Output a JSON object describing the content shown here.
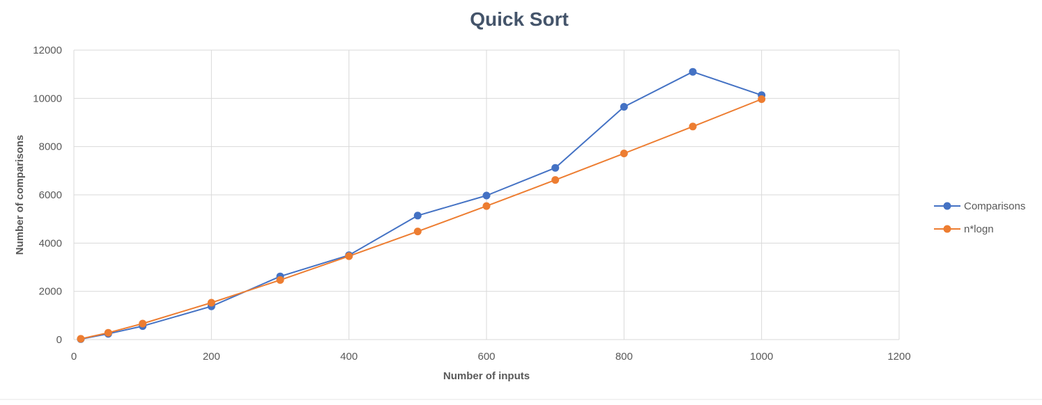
{
  "colors": {
    "comparisons": "#4472C4",
    "nlogn": "#ED7D31",
    "grid": "#D9D9D9",
    "text": "#595959",
    "title": "#44546A"
  },
  "chart_data": {
    "type": "line",
    "title": "Quick Sort",
    "xlabel": "Number of inputs",
    "ylabel": "Number of comparisons",
    "xlim": [
      0,
      1200
    ],
    "ylim": [
      0,
      12000
    ],
    "x_ticks": [
      "0",
      "200",
      "400",
      "600",
      "800",
      "1000",
      "1200"
    ],
    "y_ticks": [
      "0",
      "2000",
      "4000",
      "6000",
      "8000",
      "10000",
      "12000"
    ],
    "grid": true,
    "legend_position": "right",
    "series": [
      {
        "name": "Comparisons",
        "color": "#4472C4",
        "marker": "circle",
        "points": [
          [
            10,
            20
          ],
          [
            50,
            240
          ],
          [
            100,
            560
          ],
          [
            200,
            1380
          ],
          [
            300,
            2620
          ],
          [
            400,
            3500
          ],
          [
            500,
            5140
          ],
          [
            600,
            5970
          ],
          [
            700,
            7120
          ],
          [
            800,
            9650
          ],
          [
            900,
            11100
          ],
          [
            1000,
            10130
          ]
        ]
      },
      {
        "name": "n*logn",
        "color": "#ED7D31",
        "marker": "circle",
        "points": [
          [
            10,
            33
          ],
          [
            50,
            282
          ],
          [
            100,
            664
          ],
          [
            200,
            1529
          ],
          [
            300,
            2469
          ],
          [
            400,
            3458
          ],
          [
            500,
            4483
          ],
          [
            600,
            5537
          ],
          [
            700,
            6616
          ],
          [
            800,
            7715
          ],
          [
            900,
            8832
          ],
          [
            1000,
            9966
          ]
        ]
      }
    ]
  }
}
